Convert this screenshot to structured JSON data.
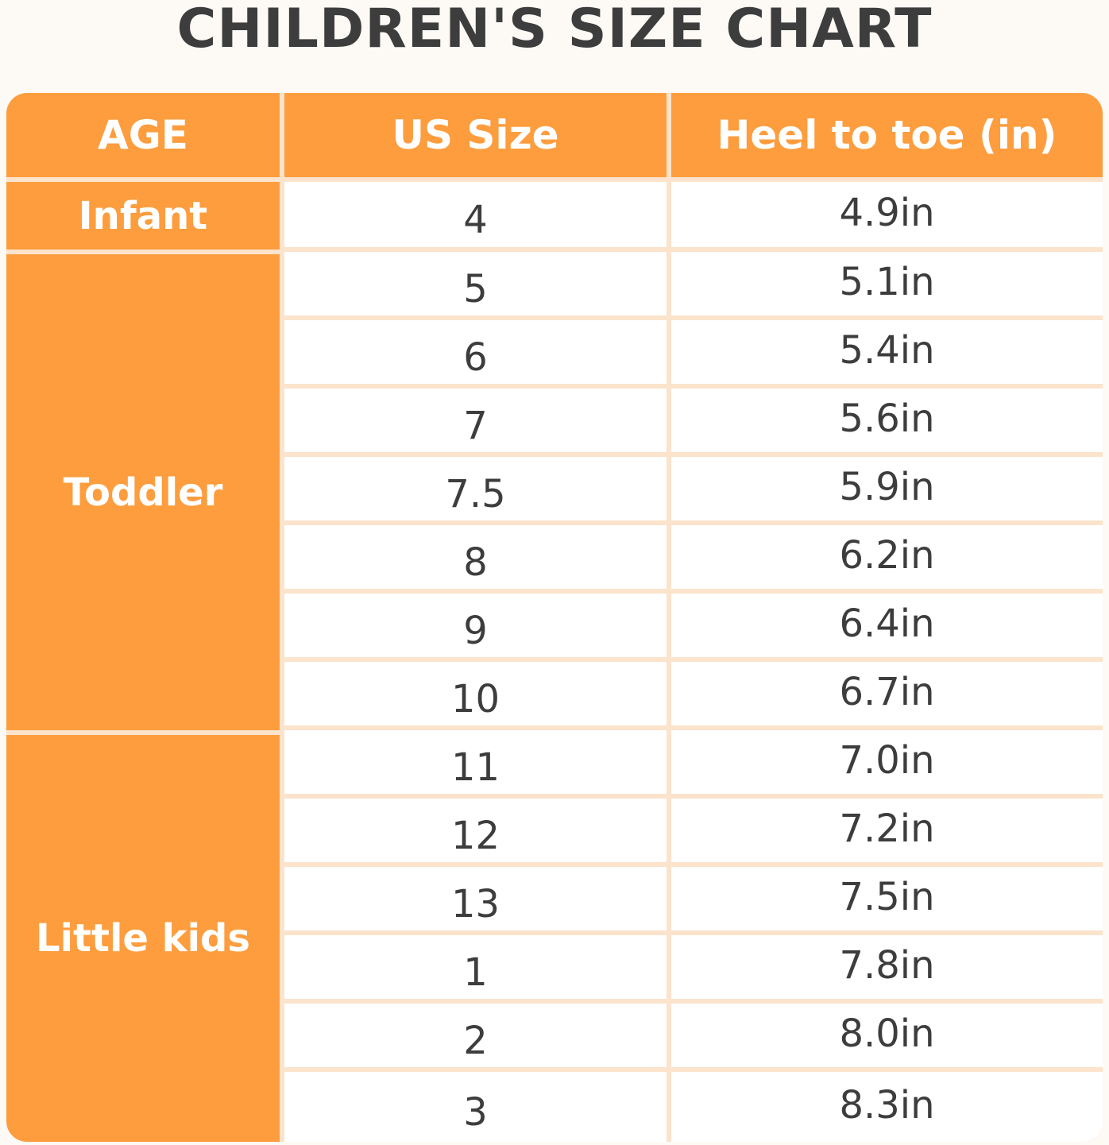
{
  "title": "CHILDREN'S SIZE CHART",
  "table": {
    "headers": [
      "AGE",
      "US Size",
      "Heel to toe (in)"
    ],
    "groups": [
      {
        "label": "Infant",
        "rows": [
          [
            "4",
            "4.9in"
          ]
        ]
      },
      {
        "label": "Toddler",
        "rows": [
          [
            "5",
            "5.1in"
          ],
          [
            "6",
            "5.4in"
          ],
          [
            "7",
            "5.6in"
          ],
          [
            "7.5",
            "5.9in"
          ],
          [
            "8",
            "6.2in"
          ],
          [
            "9",
            "6.4in"
          ],
          [
            "10",
            "6.7in"
          ]
        ]
      },
      {
        "label": "Little kids",
        "rows": [
          [
            "11",
            "7.0in"
          ],
          [
            "12",
            "7.2in"
          ],
          [
            "13",
            "7.5in"
          ],
          [
            "1",
            "7.8in"
          ],
          [
            "2",
            "8.0in"
          ],
          [
            "3",
            "8.3in"
          ]
        ]
      }
    ]
  }
}
